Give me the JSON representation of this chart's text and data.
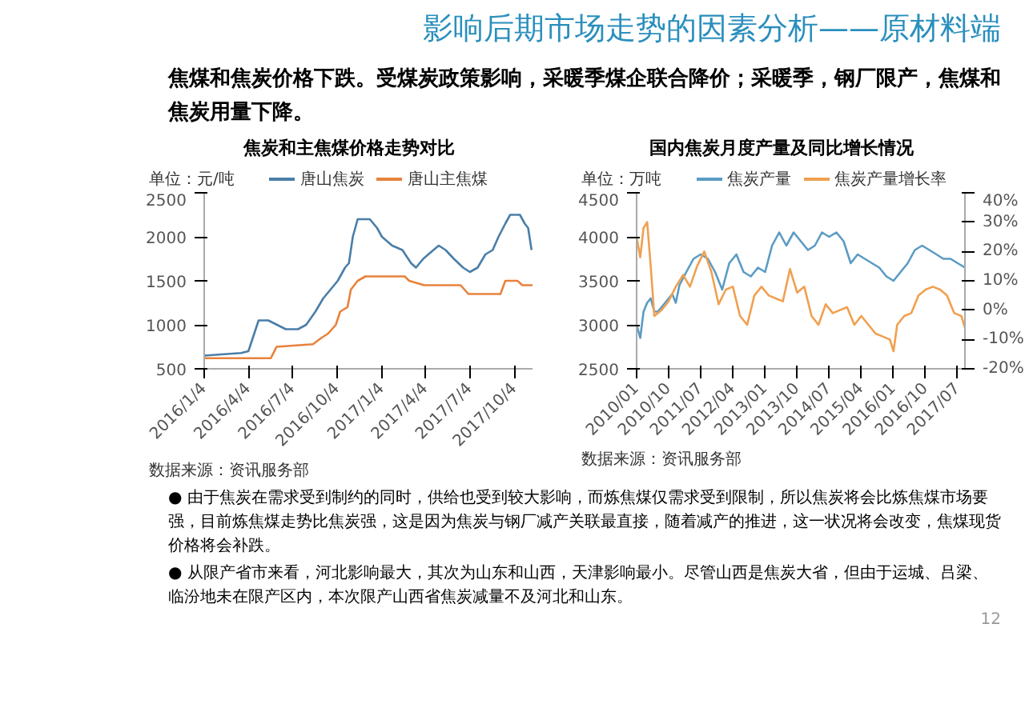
{
  "chart_data": [
    {
      "type": "other",
      "title": "影响后期市场走势的因素分析——原材料端",
      "annotations": [
        "焦煤和焦炭价格下跌。受煤炭政策影响，采暖季煤企联合降价；采暖季，钢厂限产，焦煤和焦炭用量下降。"
      ]
    },
    {
      "type": "line",
      "title": "焦炭和主焦煤价格走势对比",
      "ylabel": "单位：元/吨",
      "legend": "top",
      "annotations": [
        "数据来源：资讯服务部"
      ],
      "xlim": [
        "2016-01-04",
        "2017-11-10"
      ],
      "ylim": [
        500,
        2500
      ],
      "yticks": [
        500,
        1000,
        1500,
        2000,
        2500
      ],
      "xticks": [
        {
          "value": "2016-01-04",
          "label": "2016/1/4"
        },
        {
          "value": "2016-04-04",
          "label": "2016/4/4"
        },
        {
          "value": "2016-07-04",
          "label": "2016/7/4"
        },
        {
          "value": "2016-10-04",
          "label": "2016/10/4"
        },
        {
          "value": "2017-01-04",
          "label": "2017/1/4"
        },
        {
          "value": "2017-04-04",
          "label": "2017/4/4"
        },
        {
          "value": "2017-07-04",
          "label": "2017/7/4"
        },
        {
          "value": "2017-10-04",
          "label": "2017/10/4"
        }
      ],
      "series": [
        {
          "name": "唐山焦炭",
          "color": "#4a7ea8",
          "x": [
            "2016-01-04",
            "2016-03-20",
            "2016-04-04",
            "2016-04-25",
            "2016-05-15",
            "2016-06-20",
            "2016-07-15",
            "2016-08-01",
            "2016-08-20",
            "2016-09-05",
            "2016-09-20",
            "2016-10-05",
            "2016-10-20",
            "2016-10-28",
            "2016-11-05",
            "2016-11-15",
            "2016-12-10",
            "2016-12-25",
            "2017-01-04",
            "2017-01-25",
            "2017-02-15",
            "2017-03-05",
            "2017-03-15",
            "2017-03-30",
            "2017-04-20",
            "2017-05-01",
            "2017-05-15",
            "2017-06-01",
            "2017-06-20",
            "2017-07-04",
            "2017-07-20",
            "2017-08-05",
            "2017-08-20",
            "2017-09-01",
            "2017-09-15",
            "2017-09-25",
            "2017-10-15",
            "2017-10-25",
            "2017-11-01",
            "2017-11-08"
          ],
          "values": [
            650,
            680,
            700,
            1050,
            1050,
            950,
            950,
            1000,
            1150,
            1300,
            1400,
            1500,
            1650,
            1700,
            2000,
            2200,
            2200,
            2100,
            2000,
            1900,
            1850,
            1700,
            1650,
            1750,
            1850,
            1900,
            1850,
            1750,
            1650,
            1600,
            1650,
            1800,
            1850,
            2000,
            2150,
            2250,
            2250,
            2150,
            2100,
            1850
          ]
        },
        {
          "name": "唐山主焦煤",
          "color": "#e8823c",
          "x": [
            "2016-01-04",
            "2016-05-20",
            "2016-06-01",
            "2016-08-15",
            "2016-09-01",
            "2016-09-15",
            "2016-10-01",
            "2016-10-10",
            "2016-10-25",
            "2016-11-01",
            "2016-11-15",
            "2016-12-01",
            "2017-02-20",
            "2017-03-01",
            "2017-04-01",
            "2017-06-15",
            "2017-07-01",
            "2017-09-05",
            "2017-09-15",
            "2017-10-10",
            "2017-10-20",
            "2017-11-10"
          ],
          "values": [
            620,
            620,
            750,
            780,
            850,
            900,
            1000,
            1150,
            1200,
            1400,
            1500,
            1550,
            1550,
            1500,
            1450,
            1450,
            1350,
            1350,
            1500,
            1500,
            1450,
            1450
          ]
        }
      ]
    },
    {
      "type": "line",
      "title": "国内焦炭月度产量及同比增长情况",
      "ylabel": "单位：万吨",
      "legend": "top",
      "annotations": [
        "数据来源：资讯服务部"
      ],
      "xlim": [
        "2010-01",
        "2017-09"
      ],
      "ylim": [
        2500,
        4500
      ],
      "yticks": [
        2500,
        3000,
        3500,
        4000,
        4500
      ],
      "y2lim": [
        -20,
        40
      ],
      "y2ticks": [
        {
          "value": -20,
          "label": "-20%"
        },
        {
          "value": -10,
          "label": "-10%"
        },
        {
          "value": 0,
          "label": "0%"
        },
        {
          "value": 10,
          "label": "10%"
        },
        {
          "value": 20,
          "label": "20%"
        },
        {
          "value": 30,
          "label": "30%"
        },
        {
          "value": 40,
          "label": "40%"
        }
      ],
      "xticks": [
        {
          "value": "2010-01",
          "label": "2010/01"
        },
        {
          "value": "2010-10",
          "label": "2010/10"
        },
        {
          "value": "2011-07",
          "label": "2011/07"
        },
        {
          "value": "2012-04",
          "label": "2012/04"
        },
        {
          "value": "2013-01",
          "label": "2013/01"
        },
        {
          "value": "2013-10",
          "label": "2013/10"
        },
        {
          "value": "2014-07",
          "label": "2014/07"
        },
        {
          "value": "2015-04",
          "label": "2015/04"
        },
        {
          "value": "2016-01",
          "label": "2016/01"
        },
        {
          "value": "2016-10",
          "label": "2016/10"
        },
        {
          "value": "2017-07",
          "label": "2017/07"
        }
      ],
      "series": [
        {
          "name": "焦炭产量",
          "color": "#5b9bc4",
          "x": [
            "2010-01",
            "2010-02",
            "2010-03",
            "2010-04",
            "2010-05",
            "2010-06",
            "2010-07",
            "2010-08",
            "2010-09",
            "2010-10",
            "2010-11",
            "2010-12",
            "2011-01",
            "2011-03",
            "2011-05",
            "2011-07",
            "2011-09",
            "2011-11",
            "2012-01",
            "2012-03",
            "2012-05",
            "2012-07",
            "2012-09",
            "2012-11",
            "2013-01",
            "2013-03",
            "2013-05",
            "2013-07",
            "2013-09",
            "2013-11",
            "2014-01",
            "2014-03",
            "2014-05",
            "2014-07",
            "2014-09",
            "2014-11",
            "2015-01",
            "2015-03",
            "2015-05",
            "2015-07",
            "2015-09",
            "2015-11",
            "2016-01",
            "2016-03",
            "2016-05",
            "2016-07",
            "2016-09",
            "2016-11",
            "2017-01",
            "2017-03",
            "2017-05",
            "2017-07",
            "2017-09"
          ],
          "values": [
            3000,
            2850,
            3150,
            3250,
            3300,
            3150,
            3150,
            3200,
            3250,
            3300,
            3350,
            3250,
            3450,
            3600,
            3750,
            3800,
            3750,
            3600,
            3400,
            3700,
            3800,
            3600,
            3550,
            3650,
            3600,
            3900,
            4050,
            3900,
            4050,
            3950,
            3850,
            3900,
            4050,
            4000,
            4050,
            3950,
            3700,
            3800,
            3750,
            3700,
            3650,
            3550,
            3500,
            3600,
            3700,
            3850,
            3900,
            3850,
            3800,
            3750,
            3750,
            3700,
            3650
          ]
        },
        {
          "name": "焦炭产量增长率",
          "color": "#f0a050",
          "axis": "y2",
          "x": [
            "2010-01",
            "2010-02",
            "2010-03",
            "2010-04",
            "2010-05",
            "2010-06",
            "2010-08",
            "2010-10",
            "2010-12",
            "2011-02",
            "2011-04",
            "2011-06",
            "2011-08",
            "2011-10",
            "2011-12",
            "2012-02",
            "2012-04",
            "2012-06",
            "2012-08",
            "2012-10",
            "2012-12",
            "2013-02",
            "2013-04",
            "2013-06",
            "2013-08",
            "2013-10",
            "2013-12",
            "2014-02",
            "2014-04",
            "2014-06",
            "2014-08",
            "2014-10",
            "2014-12",
            "2015-02",
            "2015-04",
            "2015-06",
            "2015-08",
            "2015-10",
            "2015-12",
            "2016-01",
            "2016-02",
            "2016-04",
            "2016-06",
            "2016-08",
            "2016-10",
            "2016-12",
            "2017-02",
            "2017-04",
            "2017-06",
            "2017-08",
            "2017-09"
          ],
          "values": [
            25,
            18,
            28,
            30,
            15,
            -2,
            0,
            3,
            8,
            12,
            8,
            15,
            20,
            13,
            2,
            7,
            8,
            -2,
            -5,
            5,
            8,
            5,
            4,
            3,
            14,
            6,
            8,
            -2,
            -5,
            2,
            -1,
            0,
            1,
            -5,
            -2,
            -5,
            -8,
            -9,
            -10,
            -14,
            -5,
            -2,
            -1,
            5,
            7,
            8,
            7,
            5,
            -1,
            -2,
            -6
          ]
        }
      ]
    },
    {
      "type": "other",
      "annotations": [
        "● 由于焦炭在需求受到制约的同时，供给也受到较大影响，而炼焦煤仅需求受到限制，所以焦炭将会比炼焦煤市场要强，目前炼焦煤走势比焦炭强，这是因为焦炭与钢厂减产关联最直接，随着减产的推进，这一状况将会改变，焦煤现货价格将会补跌。",
        "● 从限产省市来看，河北影响最大，其次为山东和山西，天津影响最小。尽管山西是焦炭大省，但由于运城、吕梁、临汾地未在限产区内，本次限产山西省焦炭减量不及河北和山东。",
        "12"
      ]
    }
  ]
}
